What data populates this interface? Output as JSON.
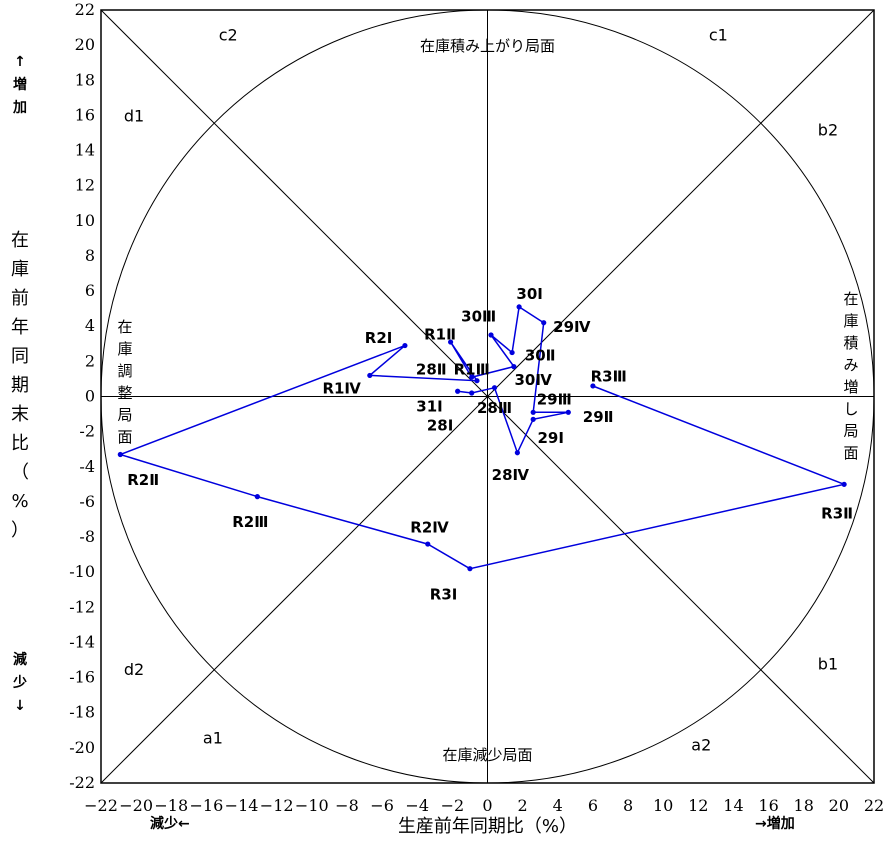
{
  "chart_data": {
    "type": "scatter",
    "xlabel": "生産前年同期比（%）",
    "ylabel": "在庫前年同期末比（%）",
    "xlim": [
      -22,
      22
    ],
    "ylim": [
      -22,
      22
    ],
    "ticks": [
      -22,
      -20,
      -18,
      -16,
      -14,
      -12,
      -10,
      -8,
      -6,
      -4,
      -2,
      0,
      2,
      4,
      6,
      8,
      10,
      12,
      14,
      16,
      18,
      20,
      22
    ],
    "x_direction": {
      "decrease": "減少←",
      "increase": "→増加"
    },
    "y_direction": {
      "increase": "↑増加",
      "decrease": "減少↓"
    },
    "zones": [
      {
        "label": "c2",
        "x": -15.3,
        "y": 20.6
      },
      {
        "label": "c1",
        "x": 12.6,
        "y": 20.6
      },
      {
        "label": "d1",
        "x": -20.7,
        "y": 16.0
      },
      {
        "label": "b2",
        "x": 18.8,
        "y": 15.2
      },
      {
        "label": "d2",
        "x": -20.7,
        "y": -15.5
      },
      {
        "label": "b1",
        "x": 18.8,
        "y": -15.2
      },
      {
        "label": "a1",
        "x": -16.2,
        "y": -19.4
      },
      {
        "label": "a2",
        "x": 11.6,
        "y": -19.8
      }
    ],
    "phases": {
      "top": "在庫積み上がり局面",
      "bottom": "在庫減少局面",
      "left": [
        "在",
        "庫",
        "調",
        "整",
        "局",
        "面"
      ],
      "right": [
        "在",
        "庫",
        "積",
        "み",
        "増",
        "し",
        "局",
        "面"
      ]
    },
    "series": [
      {
        "color": "#0000dd",
        "points": [
          {
            "label": "28Ⅰ",
            "x": -1.7,
            "y": 0.3,
            "lx": -2.7,
            "ly": -1.6
          },
          {
            "label": "28Ⅱ",
            "x": -0.9,
            "y": 0.2,
            "lx": -3.2,
            "ly": 1.6
          },
          {
            "label": "28Ⅲ",
            "x": 0.4,
            "y": 0.5,
            "lx": 0.4,
            "ly": -0.6
          },
          {
            "label": "28Ⅳ",
            "x": 1.7,
            "y": -3.2,
            "lx": 1.3,
            "ly": -4.4
          },
          {
            "label": "29Ⅰ",
            "x": 2.6,
            "y": -1.3,
            "lx": 3.6,
            "ly": -2.3
          },
          {
            "label": "29Ⅱ",
            "x": 4.6,
            "y": -0.9,
            "lx": 6.3,
            "ly": -1.1
          },
          {
            "label": "29Ⅲ",
            "x": 2.6,
            "y": -0.9,
            "lx": 3.8,
            "ly": -0.1
          },
          {
            "label": "29Ⅳ",
            "x": 3.2,
            "y": 4.2,
            "lx": 4.8,
            "ly": 4.0
          },
          {
            "label": "30Ⅰ",
            "x": 1.8,
            "y": 5.1,
            "lx": 2.4,
            "ly": 5.9
          },
          {
            "label": "30Ⅱ",
            "x": 1.4,
            "y": 2.5,
            "lx": 3.0,
            "ly": 2.4
          },
          {
            "label": "30Ⅲ",
            "x": 0.2,
            "y": 3.5,
            "lx": -0.5,
            "ly": 4.6
          },
          {
            "label": "30Ⅳ",
            "x": 1.5,
            "y": 1.7,
            "lx": 2.6,
            "ly": 1.0
          },
          {
            "label": "31Ⅰ",
            "x": -0.9,
            "y": 1.1,
            "lx": -3.3,
            "ly": -0.5
          },
          {
            "label": "R1Ⅱ",
            "x": -2.1,
            "y": 3.1,
            "lx": -2.7,
            "ly": 3.6
          },
          {
            "label": "R1Ⅲ",
            "x": -0.6,
            "y": 0.9,
            "lx": -0.9,
            "ly": 1.6
          },
          {
            "label": "R1Ⅳ",
            "x": -6.7,
            "y": 1.2,
            "lx": -8.3,
            "ly": 0.5
          },
          {
            "label": "R2Ⅰ",
            "x": -4.7,
            "y": 2.9,
            "lx": -6.2,
            "ly": 3.4
          },
          {
            "label": "R2Ⅱ",
            "x": -20.9,
            "y": -3.3,
            "lx": -19.6,
            "ly": -4.7
          },
          {
            "label": "R2Ⅲ",
            "x": -13.1,
            "y": -5.7,
            "lx": -13.5,
            "ly": -7.1
          },
          {
            "label": "R2Ⅳ",
            "x": -3.4,
            "y": -8.4,
            "lx": -3.3,
            "ly": -7.4
          },
          {
            "label": "R3Ⅰ",
            "x": -1.0,
            "y": -9.8,
            "lx": -2.5,
            "ly": -11.2
          },
          {
            "label": "R3Ⅱ",
            "x": 20.3,
            "y": -5.0,
            "lx": 19.9,
            "ly": -6.6
          },
          {
            "label": "R3Ⅲ",
            "x": 6.0,
            "y": 0.6,
            "lx": 6.9,
            "ly": 1.2
          }
        ]
      }
    ]
  }
}
